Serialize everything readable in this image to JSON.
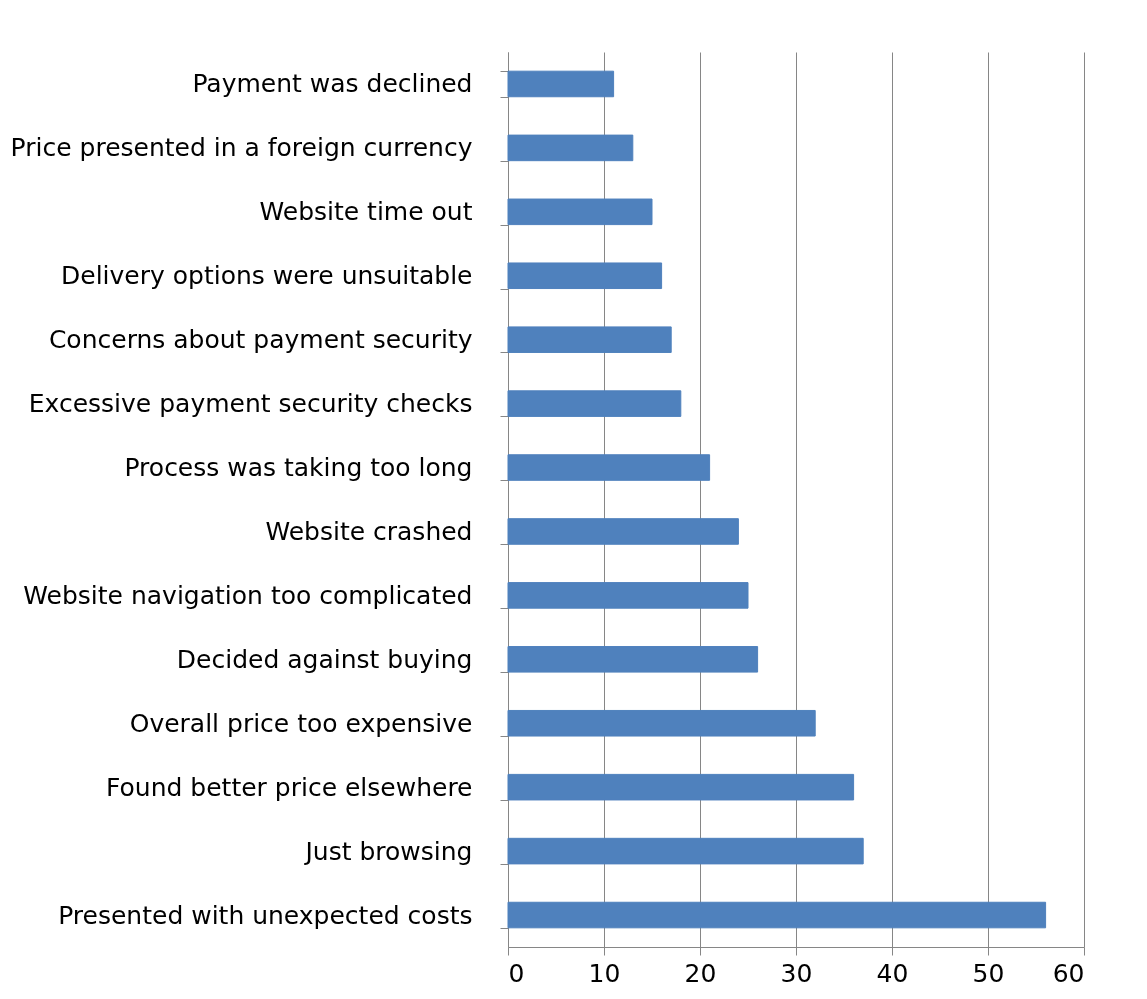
{
  "chart_data": {
    "type": "bar",
    "orientation": "horizontal",
    "categories": [
      "Payment was declined",
      "Price presented in a foreign currency",
      "Website time out",
      "Delivery options were unsuitable",
      "Concerns about payment security",
      "Excessive payment security checks",
      "Process was taking too long",
      "Website crashed",
      "Website navigation too complicated",
      "Decided against buying",
      "Overall price too expensive",
      "Found better price elsewhere",
      "Just browsing",
      "Presented with unexpected costs"
    ],
    "values": [
      11,
      13,
      15,
      16,
      17,
      18,
      21,
      24,
      25,
      26,
      32,
      36,
      37,
      56
    ],
    "color": "#4f81bd",
    "xlim": [
      0,
      60
    ],
    "xticks": [
      0,
      10,
      20,
      30,
      40,
      50,
      60
    ],
    "grid": "x"
  }
}
